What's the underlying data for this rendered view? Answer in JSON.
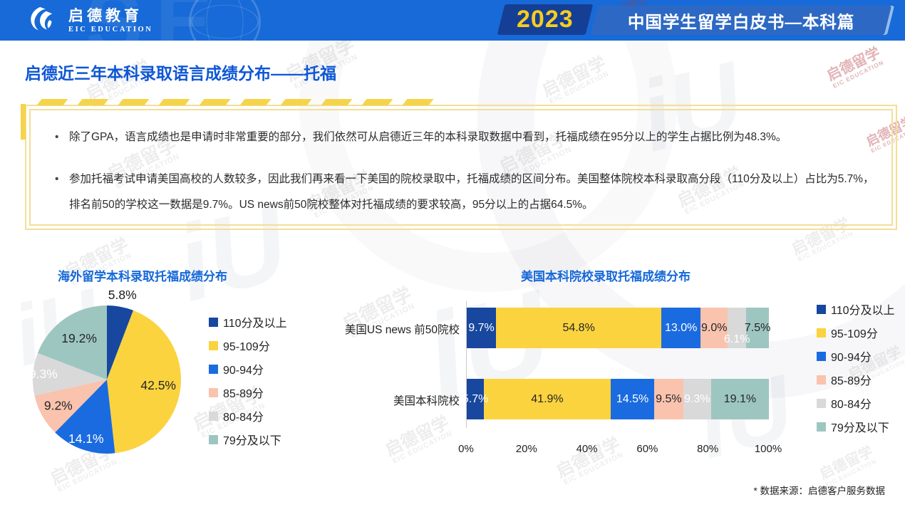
{
  "header": {
    "brand_cn": "启德教育",
    "brand_en": "EIC EDUCATION",
    "year": "2023",
    "report_title": "中国学生留学白皮书—本科篇",
    "colors": {
      "bar_bg": "#176AD7",
      "year_text": "#F7CD1E",
      "year_bg": "#153F95",
      "title_bg": "#2D69C4"
    }
  },
  "page": {
    "title": "启德近三年本科录取语言成绩分布——托福",
    "title_color": "#0E57D5",
    "footnote": "* 数据来源：启德客户服务数据",
    "watermark_cn": "启德留学",
    "watermark_en": "EIC EDUCATION",
    "watermark_logo": "iU"
  },
  "callout": {
    "bullets": [
      "除了GPA，语言成绩也是申请时非常重要的部分，我们依然可从启德近三年的本科录取数据中看到，托福成绩在95分以上的学生占据比例为48.3%。",
      "参加托福考试申请美国高校的人数较多，因此我们再来看一下美国的院校录取中，托福成绩的区间分布。美国整体院校本科录取高分段（110分及以上）占比为5.7%，排名前50的学校这一数据是9.7%。US news前50院校整体对托福成绩的要求较高，95分以上的占据64.5%。"
    ],
    "border_color": "#F2DF96",
    "dash_color": "#F5D44B"
  },
  "chart_data": [
    {
      "type": "pie",
      "title": "海外留学本科录取托福成绩分布",
      "categories": [
        "110分及以上",
        "95-109分",
        "90-94分",
        "85-89分",
        "80-84分",
        "79分及以下"
      ],
      "values": [
        5.8,
        42.5,
        14.1,
        9.2,
        9.3,
        19.2
      ],
      "colors": [
        "#17479E",
        "#FBD33F",
        "#1A6BE0",
        "#F9C3AE",
        "#D9D9D9",
        "#9DC6C1"
      ],
      "label_colors": [
        "#1A1A1A",
        "#262626",
        "#FFFFFF",
        "#262626",
        "#FFFFFF",
        "#262626"
      ],
      "label_radius": [
        1.15,
        0.7,
        0.86,
        0.75,
        0.86,
        0.66
      ],
      "start_angle_deg": 0,
      "direction": "clockwise",
      "legend_position": "right"
    },
    {
      "type": "bar",
      "stacked": true,
      "orientation": "horizontal",
      "title": "美国本科院校录取托福成绩分布",
      "categories": [
        "美国US news 前50院校",
        "美国本科院校"
      ],
      "series": [
        {
          "name": "110分及以上",
          "values": [
            9.7,
            5.7
          ]
        },
        {
          "name": "95-109分",
          "values": [
            54.8,
            41.9
          ]
        },
        {
          "name": "90-94分",
          "values": [
            13.0,
            14.5
          ]
        },
        {
          "name": "85-89分",
          "values": [
            9.0,
            9.5
          ]
        },
        {
          "name": "80-84分",
          "values": [
            6.1,
            9.3
          ]
        },
        {
          "name": "79分及以下",
          "values": [
            7.5,
            19.1
          ]
        }
      ],
      "colors": [
        "#17479E",
        "#FBD33F",
        "#1A6BE0",
        "#F9C3AE",
        "#D9D9D9",
        "#9DC6C1"
      ],
      "value_label_colors": [
        "#FFFFFF",
        "#262626",
        "#FFFFFF",
        "#262626",
        "#FFFFFF",
        "#262626"
      ],
      "label_dy": [
        [
          0,
          0,
          0,
          0,
          16,
          0
        ],
        [
          0,
          0,
          0,
          0,
          0,
          0
        ]
      ],
      "x_ticks": [
        "0%",
        "20%",
        "40%",
        "60%",
        "80%",
        "100%"
      ],
      "xlim": [
        0,
        100
      ],
      "grid": false,
      "legend_position": "right"
    }
  ]
}
